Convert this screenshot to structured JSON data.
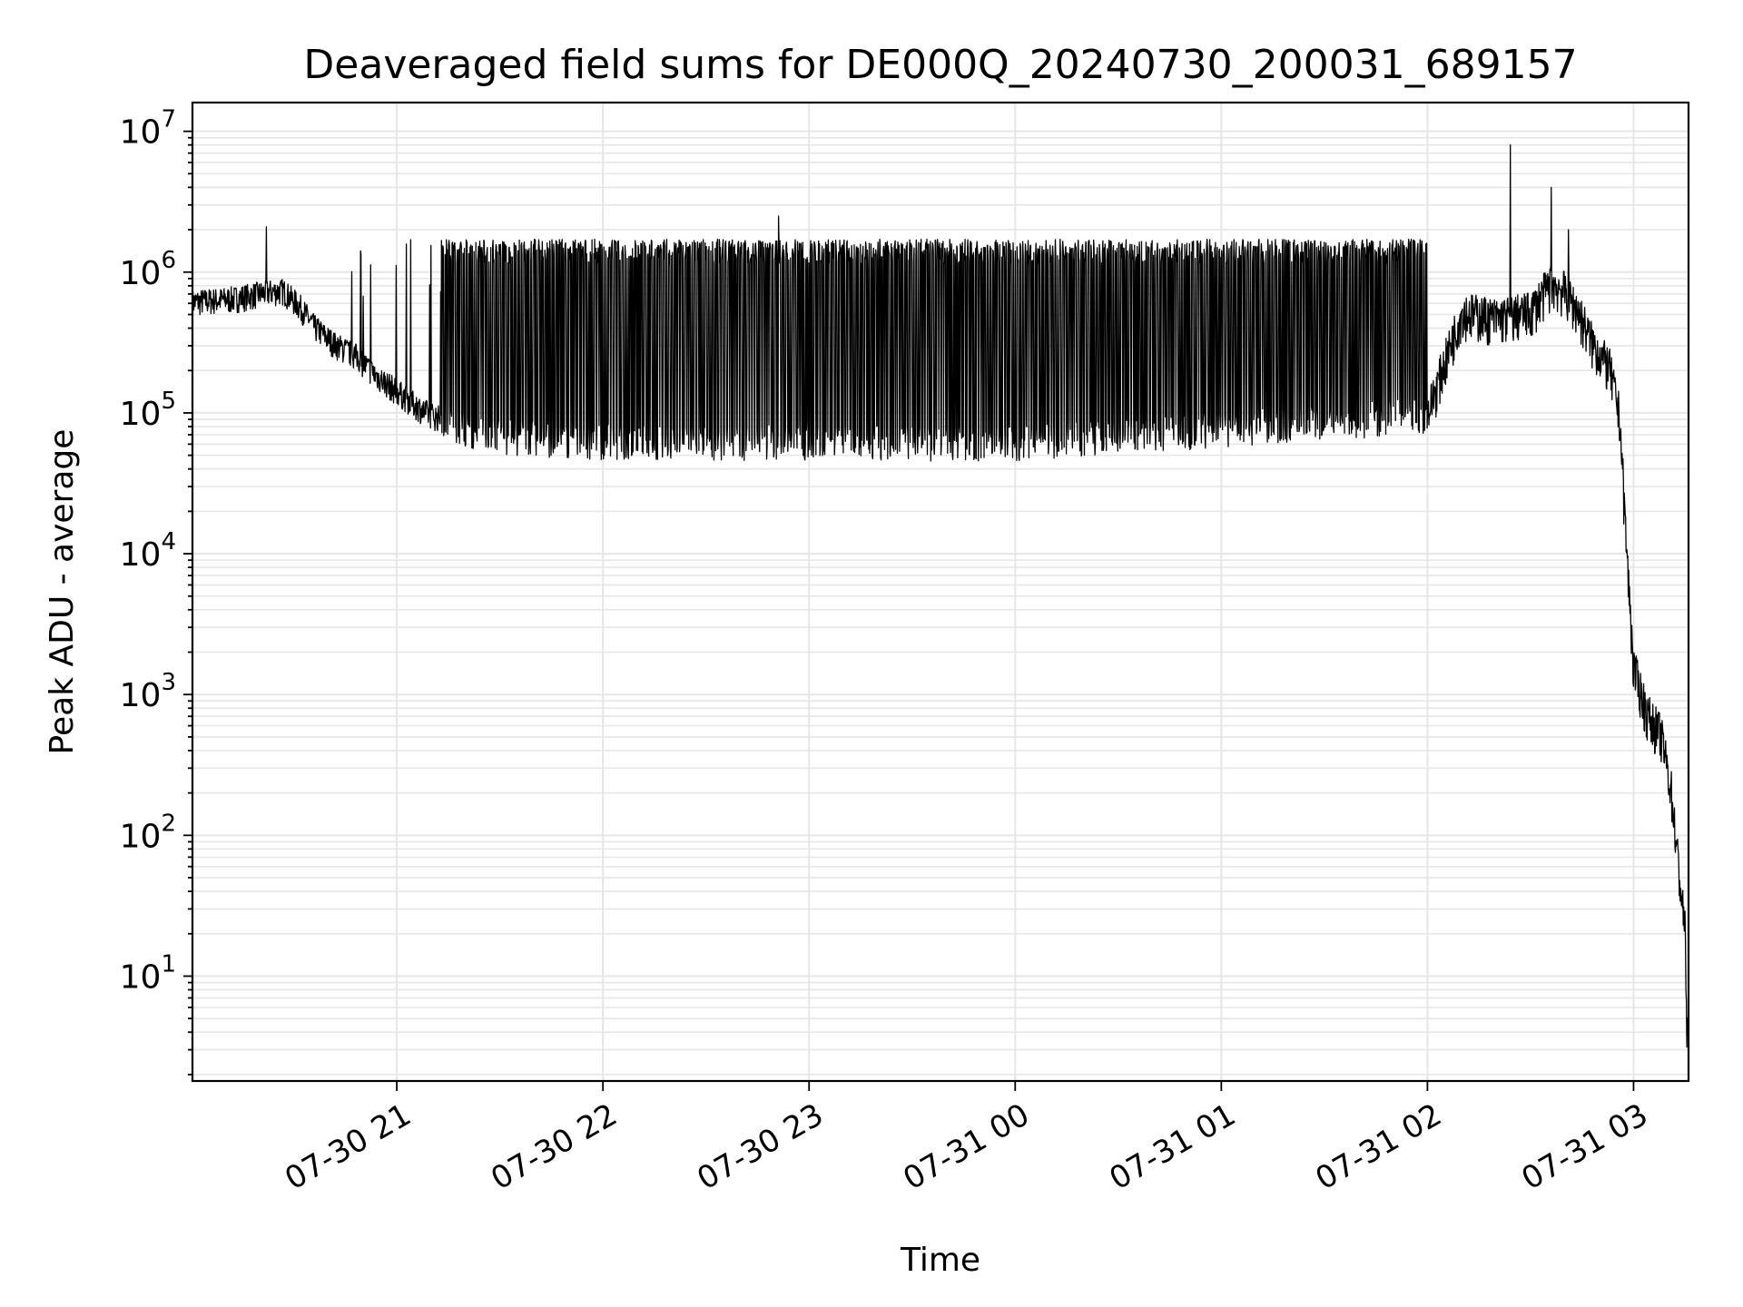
{
  "chart_data": {
    "type": "line",
    "title": "Deaveraged field sums for DE000Q_20240730_200031_689157",
    "xlabel": "Time",
    "ylabel": "Peak ADU - average",
    "xlim": [
      "2024-07-30 20:00:31",
      "2024-07-31 03:16:00"
    ],
    "ylim": [
      1.8,
      16000000.0
    ],
    "yscale": "log",
    "grid": true,
    "legend": "none",
    "line_color": "#000000",
    "grid_color": "#e6e6e6",
    "x_ticks": [
      {
        "time": "2024-07-30 21:00",
        "label": "07-30 21"
      },
      {
        "time": "2024-07-30 22:00",
        "label": "07-30 22"
      },
      {
        "time": "2024-07-30 23:00",
        "label": "07-30 23"
      },
      {
        "time": "2024-07-31 00:00",
        "label": "07-31 00"
      },
      {
        "time": "2024-07-31 01:00",
        "label": "07-31 01"
      },
      {
        "time": "2024-07-31 02:00",
        "label": "07-31 02"
      },
      {
        "time": "2024-07-31 03:00",
        "label": "07-31 03"
      }
    ],
    "y_ticks": [
      {
        "value": 10,
        "base": "10",
        "exp": "1"
      },
      {
        "value": 100,
        "base": "10",
        "exp": "2"
      },
      {
        "value": 1000,
        "base": "10",
        "exp": "3"
      },
      {
        "value": 10000,
        "base": "10",
        "exp": "4"
      },
      {
        "value": 100000,
        "base": "10",
        "exp": "5"
      },
      {
        "value": 1000000,
        "base": "10",
        "exp": "6"
      },
      {
        "value": 10000000,
        "base": "10",
        "exp": "7"
      }
    ],
    "baseline": [
      [
        "2024-07-30 20:00:31",
        600000
      ],
      [
        "2024-07-30 20:12",
        630000
      ],
      [
        "2024-07-30 20:22",
        700000
      ],
      [
        "2024-07-30 20:27",
        720000
      ],
      [
        "2024-07-30 20:32",
        550000
      ],
      [
        "2024-07-30 20:36",
        400000
      ],
      [
        "2024-07-30 20:42",
        300000
      ],
      [
        "2024-07-30 20:48",
        250000
      ],
      [
        "2024-07-30 20:54",
        180000
      ],
      [
        "2024-07-30 21:00",
        140000
      ],
      [
        "2024-07-30 21:08",
        100000
      ],
      [
        "2024-07-30 21:15",
        85000
      ],
      [
        "2024-07-30 21:25",
        70000
      ],
      [
        "2024-07-30 21:40",
        65000
      ],
      [
        "2024-07-30 22:00",
        62000
      ],
      [
        "2024-07-31 00:00",
        60000
      ],
      [
        "2024-07-31 02:00",
        95000
      ],
      [
        "2024-07-31 02:10",
        500000
      ],
      [
        "2024-07-31 02:20",
        450000
      ],
      [
        "2024-07-31 02:30",
        500000
      ],
      [
        "2024-07-31 02:36",
        800000
      ],
      [
        "2024-07-31 02:40",
        700000
      ],
      [
        "2024-07-31 02:44",
        500000
      ],
      [
        "2024-07-31 02:48",
        300000
      ],
      [
        "2024-07-31 02:53",
        200000
      ],
      [
        "2024-07-31 02:56",
        90000
      ],
      [
        "2024-07-31 02:58",
        10000
      ],
      [
        "2024-07-31 03:00",
        1500
      ],
      [
        "2024-07-31 03:04",
        700
      ],
      [
        "2024-07-31 03:08",
        500
      ],
      [
        "2024-07-31 03:11",
        200
      ],
      [
        "2024-07-31 03:13",
        60
      ],
      [
        "2024-07-31 03:15",
        20
      ],
      [
        "2024-07-31 03:15:30",
        4
      ],
      [
        "2024-07-31 03:16",
        4
      ]
    ],
    "oscillation": {
      "start": "2024-07-30 21:13",
      "end": "2024-07-31 02:00",
      "peak": 1600000
    },
    "spikes": [
      [
        "2024-07-30 20:22",
        2100000
      ],
      [
        "2024-07-30 21:04",
        1700000
      ],
      [
        "2024-07-30 22:51",
        2500000
      ],
      [
        "2024-07-31 02:24",
        8000000
      ],
      [
        "2024-07-31 02:36",
        4000000
      ],
      [
        "2024-07-31 02:41",
        2000000
      ]
    ]
  }
}
